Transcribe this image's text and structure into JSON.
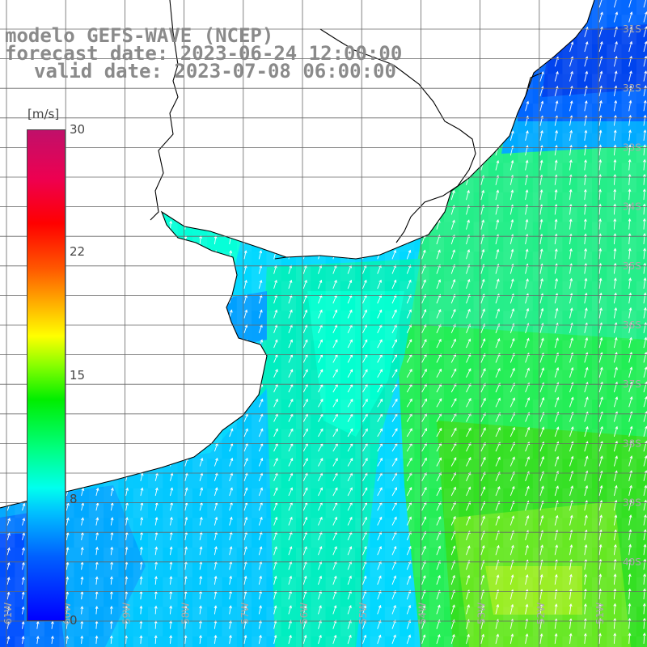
{
  "title": {
    "model": "modelo GEFS-WAVE (NCEP)",
    "forecast": "forecast date: 2023-06-24 12:00:00",
    "valid": "valid date: 2023-07-08 06:00:00"
  },
  "colorbar": {
    "unit": "[m/s]",
    "ticks": [
      "30",
      "22",
      "15",
      "8",
      "0"
    ],
    "colors": [
      "#0000ff",
      "#0060ff",
      "#00c0ff",
      "#00ffee",
      "#00ff80",
      "#00ee00",
      "#88ff00",
      "#ffff00",
      "#ffaa00",
      "#ff5500",
      "#ff0000",
      "#ee0050",
      "#c0106a"
    ]
  },
  "lat_labels": [
    "31S",
    "32S",
    "33S",
    "34S",
    "35S",
    "36S",
    "37S",
    "38S",
    "39S",
    "40S"
  ],
  "lon_labels": [
    "61W",
    "60W",
    "59W",
    "58W",
    "57W",
    "56W",
    "55W",
    "54W",
    "53W",
    "52W",
    "51W"
  ],
  "colors": {
    "land": "#ffffff",
    "coast": "#000000",
    "grid": "#666666",
    "arrow": "#ffffff",
    "title": "#8a8a8a"
  }
}
